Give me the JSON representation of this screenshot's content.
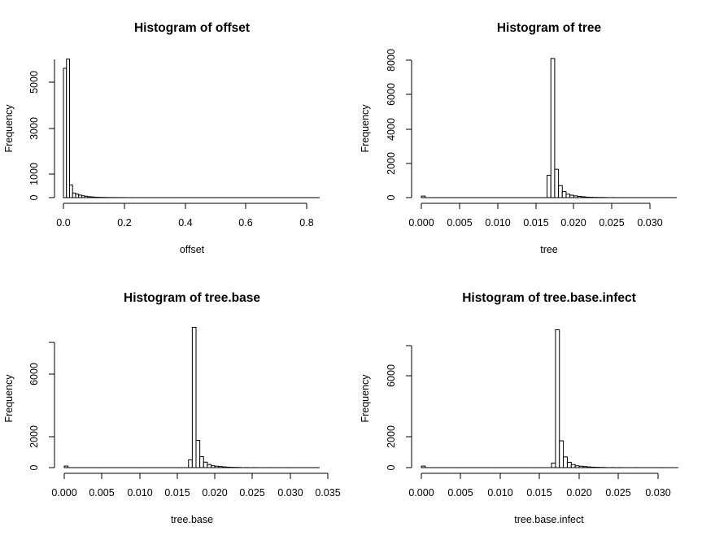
{
  "chart_data": [
    {
      "type": "bar",
      "title": "Histogram of offset",
      "xlabel": "offset",
      "ylabel": "Frequency",
      "x_ticks": [
        "0.0",
        "0.2",
        "0.4",
        "0.6",
        "0.8"
      ],
      "y_ticks": [
        "0",
        "1000",
        "3000",
        "5000"
      ],
      "bin_width": 0.01,
      "bin_starts": [
        0.0,
        0.01,
        0.02,
        0.03,
        0.04,
        0.05,
        0.06,
        0.07,
        0.08,
        0.09,
        0.1,
        0.11,
        0.12,
        0.13,
        0.14,
        0.15,
        0.16,
        0.17,
        0.18,
        0.19,
        0.2,
        0.22,
        0.25,
        0.3,
        0.4,
        0.5,
        0.6,
        0.7,
        0.8
      ],
      "values": [
        5600,
        6000,
        550,
        200,
        150,
        110,
        80,
        60,
        40,
        30,
        20,
        15,
        10,
        8,
        6,
        5,
        4,
        3,
        3,
        2,
        2,
        2,
        1,
        1,
        1,
        1,
        1,
        1,
        1
      ]
    },
    {
      "type": "bar",
      "title": "Histogram of tree",
      "xlabel": "tree",
      "ylabel": "Frequency",
      "x_ticks": [
        "0.000",
        "0.005",
        "0.010",
        "0.015",
        "0.020",
        "0.025",
        "0.030"
      ],
      "y_ticks": [
        "0",
        "2000",
        "4000",
        "6000",
        "8000"
      ],
      "bin_width": 0.0005,
      "bin_starts": [
        0.0,
        0.0165,
        0.017,
        0.0175,
        0.018,
        0.0185,
        0.019,
        0.0195,
        0.02,
        0.0205,
        0.021,
        0.0215,
        0.022,
        0.0225,
        0.023,
        0.0235,
        0.024,
        0.025,
        0.026,
        0.028,
        0.03,
        0.032
      ],
      "values": [
        90,
        1300,
        8100,
        1650,
        700,
        350,
        200,
        140,
        100,
        70,
        50,
        30,
        20,
        15,
        10,
        8,
        6,
        4,
        3,
        2,
        1,
        1
      ]
    },
    {
      "type": "bar",
      "title": "Histogram of tree.base",
      "xlabel": "tree.base",
      "ylabel": "Frequency",
      "x_ticks": [
        "0.000",
        "0.005",
        "0.010",
        "0.015",
        "0.020",
        "0.025",
        "0.030",
        "0.035"
      ],
      "y_ticks": [
        "0",
        "2000",
        "6000"
      ],
      "bin_width": 0.0005,
      "bin_starts": [
        0.0,
        0.0165,
        0.017,
        0.0175,
        0.018,
        0.0185,
        0.019,
        0.0195,
        0.02,
        0.0205,
        0.021,
        0.0215,
        0.022,
        0.0225,
        0.023,
        0.024,
        0.025,
        0.027,
        0.03,
        0.033
      ],
      "values": [
        100,
        500,
        9000,
        1750,
        700,
        350,
        200,
        120,
        90,
        70,
        45,
        30,
        20,
        15,
        10,
        6,
        4,
        3,
        2,
        1
      ]
    },
    {
      "type": "bar",
      "title": "Histogram of tree.base.infect",
      "xlabel": "tree.base.infect",
      "ylabel": "Frequency",
      "x_ticks": [
        "0.000",
        "0.005",
        "0.010",
        "0.015",
        "0.020",
        "0.025",
        "0.030"
      ],
      "y_ticks": [
        "0",
        "2000",
        "6000"
      ],
      "bin_width": 0.0005,
      "bin_starts": [
        0.0,
        0.0165,
        0.017,
        0.0175,
        0.018,
        0.0185,
        0.019,
        0.0195,
        0.02,
        0.0205,
        0.021,
        0.0215,
        0.022,
        0.0225,
        0.023,
        0.024,
        0.025,
        0.027,
        0.03,
        0.032
      ],
      "values": [
        100,
        300,
        9000,
        1750,
        700,
        350,
        200,
        120,
        90,
        70,
        45,
        30,
        20,
        15,
        10,
        6,
        4,
        3,
        2,
        1
      ]
    }
  ]
}
